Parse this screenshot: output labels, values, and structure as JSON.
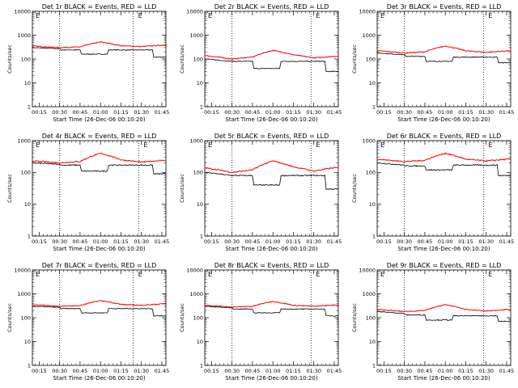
{
  "chart_data": [
    {
      "panel": "1r",
      "type": "line",
      "title": "Det 1r BLACK = Events, RED = LLD",
      "xlabel": "Start Time (26-Dec-06 00:10:20)",
      "ylabel": "Counts/sec",
      "yscale": "log",
      "ylim": [
        1,
        10000
      ],
      "x_ticks": [
        "00:15",
        "00:30",
        "00:45",
        "01:00",
        "01:15",
        "01:30",
        "01:45"
      ],
      "y_ticks": [
        "1",
        "10",
        "100",
        "1000",
        "10000"
      ],
      "marker_labels": [
        "E",
        "E"
      ],
      "vlines": [
        "00:30",
        "01:24"
      ],
      "series": [
        {
          "color": "#000000",
          "x": [
            "00:10",
            "00:30",
            "00:31",
            "00:45",
            "00:46",
            "01:05",
            "01:06",
            "01:15",
            "01:16",
            "01:38",
            "01:39",
            "01:45"
          ],
          "y": [
            300,
            270,
            240,
            240,
            160,
            160,
            240,
            240,
            240,
            240,
            120,
            120
          ]
        },
        {
          "color": "#ff0000",
          "x": [
            "00:10",
            "00:30",
            "00:45",
            "01:00",
            "01:15",
            "01:30",
            "01:45"
          ],
          "y": [
            350,
            300,
            320,
            520,
            360,
            330,
            380
          ]
        }
      ]
    },
    {
      "panel": "2r",
      "type": "line",
      "title": "Det 2r BLACK = Events, RED = LLD",
      "xlabel": "Start Time (26-Dec-06 00:10:20)",
      "ylabel": "Counts/sec",
      "yscale": "log",
      "ylim": [
        1,
        10000
      ],
      "x_ticks": [
        "00:15",
        "00:30",
        "00:45",
        "01:00",
        "01:15",
        "01:30",
        "01:45"
      ],
      "y_ticks": [
        "1",
        "10",
        "100",
        "1000",
        "10000"
      ],
      "marker_labels": [
        "E",
        "E"
      ],
      "vlines": [
        "00:30",
        "01:28"
      ],
      "series": [
        {
          "color": "#000000",
          "x": [
            "00:10",
            "00:30",
            "00:31",
            "00:45",
            "00:46",
            "01:05",
            "01:06",
            "01:15",
            "01:16",
            "01:38",
            "01:39",
            "01:45"
          ],
          "y": [
            100,
            80,
            80,
            80,
            40,
            40,
            80,
            80,
            80,
            80,
            30,
            30
          ]
        },
        {
          "color": "#ff0000",
          "x": [
            "00:10",
            "00:30",
            "00:45",
            "01:00",
            "01:15",
            "01:30",
            "01:45"
          ],
          "y": [
            140,
            100,
            120,
            230,
            150,
            110,
            130
          ]
        }
      ]
    },
    {
      "panel": "3r",
      "type": "line",
      "title": "Det 3r BLACK = Events, RED = LLD",
      "xlabel": "Start Time (26-Dec-06 00:10:20)",
      "ylabel": "Counts/sec",
      "yscale": "log",
      "ylim": [
        1,
        10000
      ],
      "x_ticks": [
        "00:15",
        "00:30",
        "00:45",
        "01:00",
        "01:15",
        "01:30",
        "01:45"
      ],
      "y_ticks": [
        "1",
        "10",
        "100",
        "1000",
        "10000"
      ],
      "marker_labels": [
        "E",
        "E"
      ],
      "vlines": [
        "00:30",
        "01:28"
      ],
      "series": [
        {
          "color": "#000000",
          "x": [
            "00:10",
            "00:30",
            "00:31",
            "00:45",
            "00:46",
            "01:05",
            "01:06",
            "01:15",
            "01:16",
            "01:38",
            "01:39",
            "01:45"
          ],
          "y": [
            180,
            150,
            130,
            130,
            80,
            80,
            120,
            120,
            120,
            120,
            70,
            70
          ]
        },
        {
          "color": "#ff0000",
          "x": [
            "00:10",
            "00:30",
            "00:45",
            "01:00",
            "01:15",
            "01:30",
            "01:45"
          ],
          "y": [
            220,
            180,
            200,
            350,
            220,
            190,
            220
          ]
        }
      ]
    },
    {
      "panel": "4r",
      "type": "line",
      "title": "Det 4r BLACK = Events, RED = LLD",
      "xlabel": "Start Time (26-Dec-06 00:10:20)",
      "ylabel": "Counts/sec",
      "yscale": "log",
      "ylim": [
        1,
        1000
      ],
      "x_ticks": [
        "00:15",
        "00:30",
        "00:45",
        "01:00",
        "01:15",
        "01:30",
        "01:45"
      ],
      "y_ticks": [
        "1",
        "10",
        "100",
        "1000"
      ],
      "marker_labels": [
        "E",
        "E"
      ],
      "vlines": [
        "00:30",
        "01:28"
      ],
      "series": [
        {
          "color": "#000000",
          "x": [
            "00:10",
            "00:30",
            "00:31",
            "00:45",
            "00:46",
            "01:05",
            "01:06",
            "01:15",
            "01:16",
            "01:38",
            "01:39",
            "01:45"
          ],
          "y": [
            200,
            180,
            170,
            170,
            110,
            110,
            170,
            170,
            170,
            170,
            90,
            90
          ]
        },
        {
          "color": "#ff0000",
          "x": [
            "00:10",
            "00:30",
            "00:45",
            "01:00",
            "01:15",
            "01:30",
            "01:45"
          ],
          "y": [
            230,
            200,
            220,
            400,
            250,
            210,
            240
          ]
        }
      ]
    },
    {
      "panel": "5r",
      "type": "line",
      "title": "Det 5r BLACK = Events, RED = LLD",
      "xlabel": "Start Time (26-Dec-06 00:10:20)",
      "ylabel": "Counts/sec",
      "yscale": "log",
      "ylim": [
        1,
        1000
      ],
      "x_ticks": [
        "00:15",
        "00:30",
        "00:45",
        "01:00",
        "01:15",
        "01:30",
        "01:45"
      ],
      "y_ticks": [
        "1",
        "10",
        "100",
        "1000"
      ],
      "marker_labels": [
        "E",
        "E"
      ],
      "vlines": [
        "00:30",
        "01:28"
      ],
      "series": [
        {
          "color": "#000000",
          "x": [
            "00:10",
            "00:30",
            "00:31",
            "00:45",
            "00:46",
            "01:05",
            "01:06",
            "01:15",
            "01:16",
            "01:38",
            "01:39",
            "01:45"
          ],
          "y": [
            100,
            80,
            80,
            80,
            40,
            40,
            80,
            80,
            80,
            80,
            30,
            30
          ]
        },
        {
          "color": "#ff0000",
          "x": [
            "00:10",
            "00:30",
            "00:45",
            "01:00",
            "01:15",
            "01:30",
            "01:45"
          ],
          "y": [
            140,
            100,
            120,
            230,
            150,
            110,
            140
          ]
        }
      ]
    },
    {
      "panel": "6r",
      "type": "line",
      "title": "Det 6r BLACK = Events, RED = LLD",
      "xlabel": "Start Time (26-Dec-06 00:10:20)",
      "ylabel": "Counts/sec",
      "yscale": "log",
      "ylim": [
        1,
        1000
      ],
      "x_ticks": [
        "00:15",
        "00:30",
        "00:45",
        "01:00",
        "01:15",
        "01:30",
        "01:45"
      ],
      "y_ticks": [
        "1",
        "10",
        "100",
        "1000"
      ],
      "marker_labels": [
        "E",
        "E"
      ],
      "vlines": [
        "00:30",
        "01:28"
      ],
      "series": [
        {
          "color": "#000000",
          "x": [
            "00:10",
            "00:30",
            "00:31",
            "00:45",
            "00:46",
            "01:05",
            "01:06",
            "01:15",
            "01:16",
            "01:38",
            "01:39",
            "01:45"
          ],
          "y": [
            200,
            170,
            160,
            160,
            120,
            120,
            170,
            170,
            170,
            170,
            80,
            80
          ]
        },
        {
          "color": "#ff0000",
          "x": [
            "00:10",
            "00:30",
            "00:45",
            "01:00",
            "01:15",
            "01:30",
            "01:45"
          ],
          "y": [
            260,
            220,
            240,
            400,
            260,
            230,
            260
          ]
        }
      ]
    },
    {
      "panel": "7r",
      "type": "line",
      "title": "Det 7r BLACK = Events, RED = LLD",
      "xlabel": "Start Time (26-Dec-06 00:10:20)",
      "ylabel": "Counts/sec",
      "yscale": "log",
      "ylim": [
        1,
        10000
      ],
      "x_ticks": [
        "00:15",
        "00:30",
        "00:45",
        "01:00",
        "01:15",
        "01:30",
        "01:45"
      ],
      "y_ticks": [
        "1",
        "10",
        "100",
        "1000",
        "10000"
      ],
      "marker_labels": [
        "E",
        "E"
      ],
      "vlines": [
        "00:30",
        "01:24"
      ],
      "series": [
        {
          "color": "#000000",
          "x": [
            "00:10",
            "00:30",
            "00:31",
            "00:45",
            "00:46",
            "01:05",
            "01:06",
            "01:15",
            "01:16",
            "01:38",
            "01:39",
            "01:45"
          ],
          "y": [
            300,
            270,
            240,
            240,
            160,
            160,
            240,
            240,
            240,
            240,
            120,
            120
          ]
        },
        {
          "color": "#ff0000",
          "x": [
            "00:10",
            "00:30",
            "00:45",
            "01:00",
            "01:15",
            "01:30",
            "01:45"
          ],
          "y": [
            350,
            300,
            320,
            520,
            360,
            330,
            380
          ]
        }
      ]
    },
    {
      "panel": "8r",
      "type": "line",
      "title": "Det 8r BLACK = Events, RED = LLD",
      "xlabel": "Start Time (26-Dec-06 00:10:20)",
      "ylabel": "Counts/sec",
      "yscale": "log",
      "ylim": [
        1,
        10000
      ],
      "x_ticks": [
        "00:15",
        "00:30",
        "00:45",
        "01:00",
        "01:15",
        "01:30",
        "01:45"
      ],
      "y_ticks": [
        "1",
        "10",
        "100",
        "1000",
        "10000"
      ],
      "marker_labels": [
        "E",
        "E"
      ],
      "vlines": [
        "00:30",
        "01:28"
      ],
      "series": [
        {
          "color": "#000000",
          "x": [
            "00:10",
            "00:30",
            "00:31",
            "00:45",
            "00:46",
            "01:05",
            "01:06",
            "01:15",
            "01:16",
            "01:38",
            "01:39",
            "01:45"
          ],
          "y": [
            300,
            260,
            230,
            230,
            160,
            160,
            230,
            230,
            230,
            230,
            120,
            120
          ]
        },
        {
          "color": "#ff0000",
          "x": [
            "00:10",
            "00:30",
            "00:45",
            "01:00",
            "01:15",
            "01:30",
            "01:45"
          ],
          "y": [
            330,
            280,
            300,
            480,
            330,
            300,
            340
          ]
        }
      ]
    },
    {
      "panel": "9r",
      "type": "line",
      "title": "Det 9r BLACK = Events, RED = LLD",
      "xlabel": "Start Time (26-Dec-06 00:10:20)",
      "ylabel": "Counts/sec",
      "yscale": "log",
      "ylim": [
        1,
        10000
      ],
      "x_ticks": [
        "00:15",
        "00:30",
        "00:45",
        "01:00",
        "01:15",
        "01:30",
        "01:45"
      ],
      "y_ticks": [
        "1",
        "10",
        "100",
        "1000",
        "10000"
      ],
      "marker_labels": [
        "E",
        "E"
      ],
      "vlines": [
        "00:30",
        "01:28"
      ],
      "series": [
        {
          "color": "#000000",
          "x": [
            "00:10",
            "00:30",
            "00:31",
            "00:45",
            "00:46",
            "01:05",
            "01:06",
            "01:15",
            "01:16",
            "01:38",
            "01:39",
            "01:45"
          ],
          "y": [
            180,
            150,
            130,
            130,
            80,
            80,
            120,
            120,
            120,
            120,
            70,
            70
          ]
        },
        {
          "color": "#ff0000",
          "x": [
            "00:10",
            "00:30",
            "00:45",
            "01:00",
            "01:15",
            "01:30",
            "01:45"
          ],
          "y": [
            220,
            180,
            200,
            350,
            220,
            190,
            220
          ]
        }
      ]
    }
  ]
}
